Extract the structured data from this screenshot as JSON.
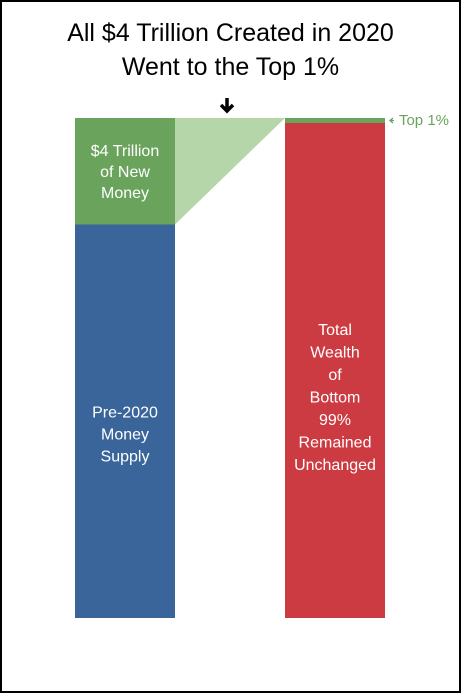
{
  "chart_data": {
    "type": "bar",
    "title_line1": "All $4 Trillion Created in 2020",
    "title_line2": "Went to the Top 1%",
    "left_bar": {
      "segments": [
        {
          "label": [
            "Pre-2020",
            "Money",
            "Supply"
          ],
          "value": 0.787,
          "color": "#3a659a"
        },
        {
          "label": [
            "$4 Trillion",
            "of New",
            "Money"
          ],
          "value": 0.213,
          "color": "#6aa35c"
        }
      ]
    },
    "right_bar": {
      "segments": [
        {
          "label": [
            "Total",
            "Wealth",
            "of",
            "Bottom",
            "99%",
            "Remained",
            "Unchanged"
          ],
          "value": 0.99,
          "color": "#cc3b42"
        },
        {
          "label": [
            "Top 1%"
          ],
          "value": 0.01,
          "color": "#6aa35c"
        }
      ]
    },
    "connector_color": "#b5d6a8"
  }
}
